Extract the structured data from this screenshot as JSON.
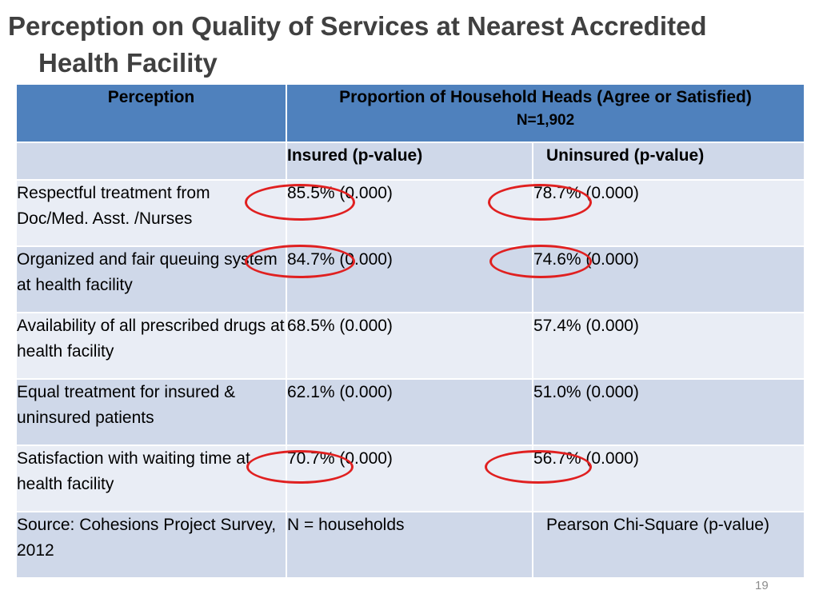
{
  "slide": {
    "title_line1": "Perception on Quality of Services at Nearest Accredited",
    "title_line2": "Health Facility",
    "page_number": "19"
  },
  "table": {
    "header": {
      "perception": "Perception",
      "proportion": "Proportion of Household Heads (Agree or Satisfied)",
      "n": "N=1,902"
    },
    "subheader": {
      "blank": "",
      "insured": "Insured (p-value)",
      "uninsured": "Uninsured (p-value)"
    },
    "rows": [
      {
        "perception": "Respectful treatment from Doc/Med. Asst. /Nurses",
        "insured": "85.5% (0.000)",
        "uninsured": "78.7% (0.000)"
      },
      {
        "perception": "Organized and fair queuing system at health facility",
        "insured": "84.7% (0.000)",
        "uninsured": "74.6% (0.000)"
      },
      {
        "perception": "Availability of all prescribed drugs at health facility",
        "insured": "68.5% (0.000)",
        "uninsured": "57.4% (0.000)"
      },
      {
        "perception": "Equal treatment for insured & uninsured patients",
        "insured": "62.1% (0.000)",
        "uninsured": "51.0% (0.000)"
      },
      {
        "perception": "Satisfaction with waiting time at health facility",
        "insured": "70.7% (0.000)",
        "uninsured": "56.7% (0.000)"
      }
    ],
    "source_row": {
      "source": "Source: Cohesions Project Survey, 2012",
      "n_note": "N = households",
      "test_note": "Pearson Chi-Square (p-value)"
    }
  },
  "colors": {
    "header_blue": "#4f81bd",
    "band_dark": "#cfd8e9",
    "band_light": "#e9edf5",
    "highlight_ring": "#e02020",
    "title_gray": "#404040"
  }
}
